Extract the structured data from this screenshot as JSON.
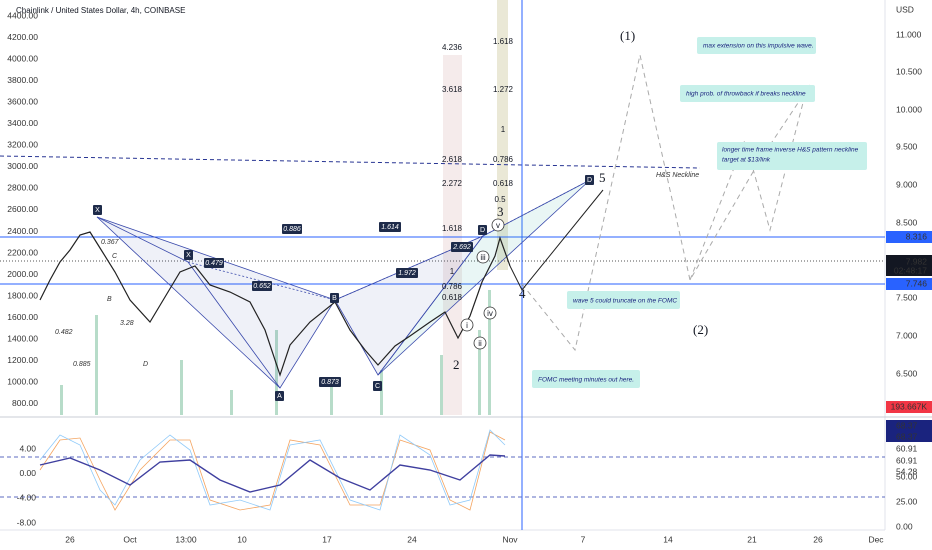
{
  "header": {
    "title": "Chainlink / United States Dollar, 4h, COINBASE",
    "currency": "USD"
  },
  "left_axis": [
    "4400.00",
    "4200.00",
    "4000.00",
    "3800.00",
    "3600.00",
    "3400.00",
    "3200.00",
    "3000.00",
    "2800.00",
    "2600.00",
    "2400.00",
    "2200.00",
    "2000.00",
    "1800.00",
    "1600.00",
    "1400.00",
    "1200.00",
    "1000.00",
    "800.00"
  ],
  "right_axis": [
    "11.000",
    "10.500",
    "10.000",
    "9.500",
    "9.000",
    "8.500",
    "7.500",
    "7.000",
    "6.500"
  ],
  "price_tags": [
    "8.316",
    "7.982",
    "02:48:17",
    "7.746",
    "193.667K"
  ],
  "indicator_left_axis": [
    "4.00",
    "0.00",
    "-4.00",
    "-8.00"
  ],
  "indicator_right_axis": [
    "68.37",
    "68.37",
    "60.91",
    "60.91",
    "54.28",
    "50.00",
    "25.00",
    "0.00"
  ],
  "time_axis": [
    "26",
    "Oct",
    "13:00",
    "10",
    "17",
    "24",
    "Nov",
    "7",
    "14",
    "21",
    "26",
    "Dec"
  ],
  "annotations": [
    "max extension on this impulsive wave.",
    "high prob. of throwback if breaks neckline",
    "longer time frame inverse H&S pattern neckline",
    "target at $13/link",
    "wave 5 could truncate on the FOMC",
    "FOMC meeting minutes out here."
  ],
  "wave_labels": [
    "(1)",
    "(2)",
    "5",
    "3",
    "4",
    "2",
    "i",
    "ii",
    "iii",
    "iv",
    "v"
  ],
  "pattern_points": [
    "X",
    "X",
    "A",
    "B",
    "C",
    "D",
    "D"
  ],
  "pattern_ratios": [
    "0.886",
    "1.614",
    "0.479",
    "0.652",
    "1.972",
    "0.873",
    "2.692"
  ],
  "fib_levels_left": [
    "4.236",
    "3.618",
    "2.618",
    "2.272",
    "1.618",
    "1",
    "0.786",
    "0.618"
  ],
  "fib_levels_right": [
    "1.618",
    "1.272",
    "1",
    "0.786",
    "0.618",
    "0.5"
  ],
  "other_labels": [
    "0.367",
    "C",
    "B",
    "3.28",
    "0.482",
    "0.885",
    "D",
    "H&S Neckline"
  ]
}
